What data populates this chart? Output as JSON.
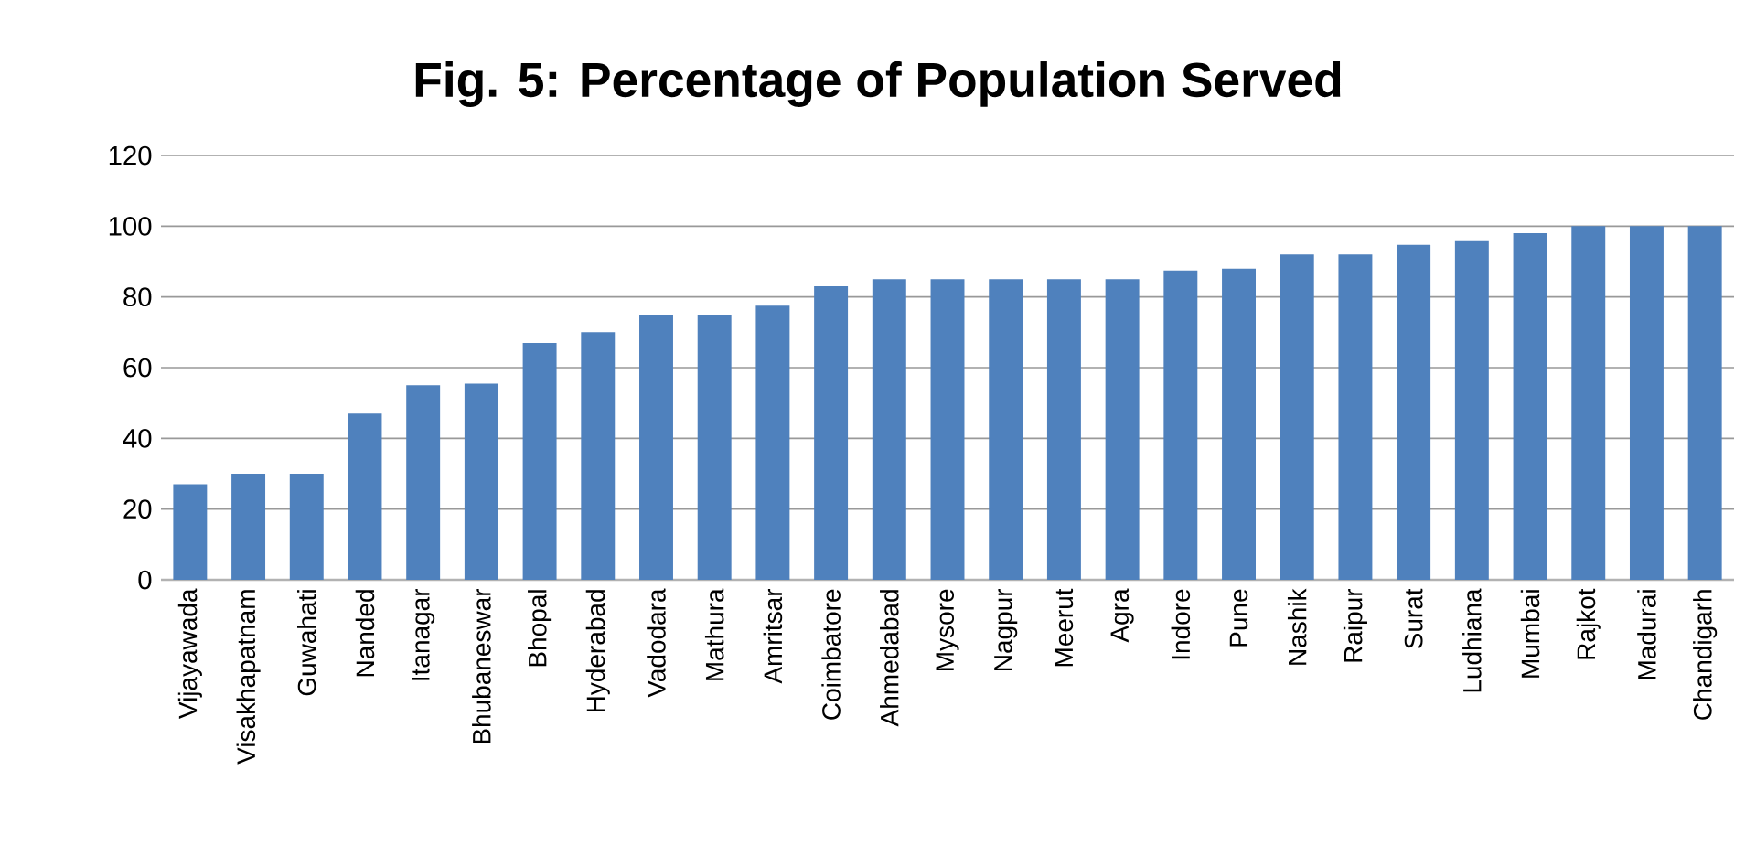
{
  "chart_data": {
    "type": "bar",
    "title": "Fig. 5: Percentage of Population Served",
    "categories": [
      "Vijayawada",
      "Visakhapatnam",
      "Guwahati",
      "Nanded",
      "Itanagar",
      "Bhubaneswar",
      "Bhopal",
      "Hyderabad",
      "Vadodara",
      "Mathura",
      "Amritsar",
      "Coimbatore",
      "Ahmedabad",
      "Mysore",
      "Nagpur",
      "Meerut",
      "Agra",
      "Indore",
      "Pune",
      "Nashik",
      "Raipur",
      "Surat",
      "Ludhiana",
      "Mumbai",
      "Rajkot",
      "Madurai",
      "Chandigarh"
    ],
    "values": [
      27,
      30,
      30,
      47,
      55,
      55.5,
      67,
      70,
      75,
      75,
      77.5,
      83,
      85,
      85,
      85,
      85,
      85,
      87.5,
      88,
      92,
      92,
      94.7,
      96,
      98,
      100,
      100,
      100
    ],
    "color": "#4f81bd",
    "ylim": [
      0,
      120
    ],
    "yticks": [
      0,
      20,
      40,
      60,
      80,
      100,
      120
    ],
    "grid": "y"
  }
}
